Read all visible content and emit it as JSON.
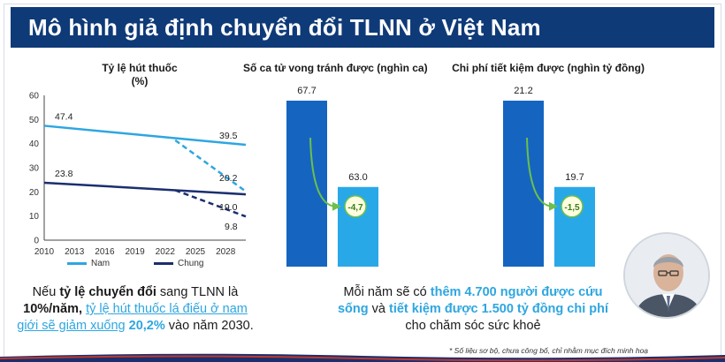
{
  "header": {
    "title": "Mô hình giả định chuyển đổi TLNN ở Việt Nam"
  },
  "colors": {
    "header_bg": "#0f3a78",
    "nam": "#2ea6e0",
    "chung": "#1b2e6e",
    "bar_dark": "#1565c0",
    "bar_light": "#29a8e8",
    "arrow": "#6cc04a"
  },
  "chart_data": [
    {
      "type": "line",
      "title_line1": "Tỷ lệ hút thuốc",
      "title_line2": "(%)",
      "x_ticks": [
        "2010",
        "2013",
        "2016",
        "2019",
        "2022",
        "2025",
        "2028"
      ],
      "ylim": [
        0,
        60
      ],
      "y_ticks": [
        "0",
        "10",
        "20",
        "30",
        "40",
        "50",
        "60"
      ],
      "grid": false,
      "legend_position": "bottom",
      "series": [
        {
          "name": "Nam",
          "points": [
            [
              2010,
              47.4
            ],
            [
              2030,
              39.5
            ]
          ],
          "projection": [
            [
              2023,
              41.4
            ],
            [
              2030,
              20.2
            ]
          ]
        },
        {
          "name": "Chung",
          "points": [
            [
              2010,
              23.8
            ],
            [
              2030,
              19.0
            ]
          ],
          "projection": [
            [
              2023,
              20.7
            ],
            [
              2030,
              9.8
            ]
          ]
        }
      ],
      "data_labels": [
        "47.4",
        "39.5",
        "20.2",
        "23.8",
        "19.0",
        "9.8"
      ]
    },
    {
      "type": "bar",
      "title": "Số ca tử vong tránh được (nghìn ca)",
      "values": [
        67.7,
        63.0
      ],
      "value_labels": [
        "67.7",
        "63.0"
      ],
      "difference_label": "-4,7"
    },
    {
      "type": "bar",
      "title": "Chi phí tiết kiệm được (nghìn tỷ đồng)",
      "values": [
        21.2,
        19.7
      ],
      "value_labels": [
        "21.2",
        "19.7"
      ],
      "difference_label": "-1,5"
    }
  ],
  "captions": {
    "left": {
      "p1": "Nếu ",
      "b1": "tỷ lệ chuyển đổi",
      "p2": " sang TLNN là ",
      "b2": "10%/năm,",
      "p3": " ",
      "h1": "tỷ lệ hút thuốc lá điếu ở nam giới sẽ giảm xuống",
      "p4": " ",
      "h2": "20,2%",
      "p5": " vào năm 2030."
    },
    "right": {
      "p1": "Mỗi năm sẽ có ",
      "h1": "thêm 4.700 người được cứu sống",
      "p2": " và ",
      "h2": "tiết kiệm được 1.500 tỷ đồng chi phí",
      "p3": " cho chăm sóc sức khoẻ"
    }
  },
  "footnote": "* Số liệu sơ bộ, chưa công bố, chỉ nhằm mục đích minh hoạ"
}
